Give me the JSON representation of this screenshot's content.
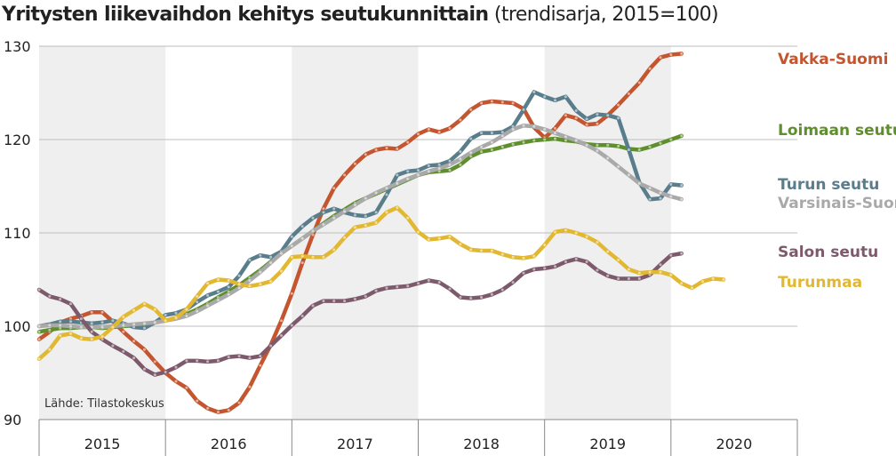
{
  "chart_data": {
    "type": "line",
    "title": "Yritysten liikevaihdon kehitys seutukunnittain",
    "subtitle": "(trendisarja, 2015=100)",
    "source": "Lähde: Tilastokeskus",
    "xlabel": "",
    "ylabel": "",
    "ylim": [
      90,
      130
    ],
    "yticks": [
      "90",
      "100",
      "110",
      "120",
      "130"
    ],
    "years": [
      "2015",
      "2016",
      "2017",
      "2018",
      "2019",
      "2020"
    ],
    "shaded_years": [
      "2015",
      "2017",
      "2019"
    ],
    "x_start": 2015.0,
    "x_end": 2021.0,
    "series": [
      {
        "name": "Vakka-Suomi",
        "color": "#c4552f",
        "start": 2015.0,
        "step": 0.0833333,
        "values": [
          98.6,
          99.4,
          100.4,
          100.8,
          101.1,
          101.5,
          101.5,
          100.5,
          99.4,
          98.4,
          97.5,
          96.2,
          95.0,
          94.1,
          93.4,
          92.0,
          91.2,
          90.8,
          91.0,
          91.8,
          93.5,
          95.8,
          98.0,
          100.6,
          103.5,
          106.8,
          109.8,
          112.6,
          114.8,
          116.2,
          117.4,
          118.4,
          118.9,
          119.1,
          119.0,
          119.7,
          120.6,
          121.1,
          120.8,
          121.2,
          122.1,
          123.2,
          123.9,
          124.1,
          124.0,
          123.9,
          123.3,
          121.3,
          120.2,
          121.2,
          122.6,
          122.3,
          121.6,
          121.7,
          122.6,
          123.7,
          124.9,
          126.1,
          127.6,
          128.8,
          129.1,
          129.2
        ]
      },
      {
        "name": "Loimaan seutu",
        "color": "#5f8f2c",
        "start": 2015.0,
        "step": 0.0833333,
        "values": [
          99.4,
          99.6,
          99.8,
          99.8,
          99.9,
          99.9,
          99.8,
          99.9,
          100.0,
          100.1,
          100.2,
          100.4,
          100.6,
          100.9,
          101.3,
          101.8,
          102.4,
          103.1,
          103.7,
          104.4,
          105.2,
          106.0,
          106.9,
          107.8,
          108.6,
          109.4,
          110.2,
          111.0,
          111.8,
          112.5,
          113.2,
          113.7,
          114.2,
          114.7,
          115.2,
          115.7,
          116.2,
          116.5,
          116.6,
          116.7,
          117.3,
          118.2,
          118.7,
          118.9,
          119.2,
          119.5,
          119.7,
          119.9,
          120.0,
          120.1,
          119.9,
          119.8,
          119.5,
          119.4,
          119.4,
          119.3,
          119.0,
          118.9,
          119.2,
          119.6,
          120.0,
          120.4
        ]
      },
      {
        "name": "Turun seutu",
        "color": "#5a7d8c",
        "start": 2015.0,
        "step": 0.0833333,
        "values": [
          100.0,
          100.2,
          100.5,
          100.5,
          100.4,
          100.3,
          100.4,
          100.6,
          100.3,
          99.9,
          99.8,
          100.4,
          101.2,
          101.4,
          101.8,
          102.6,
          103.3,
          103.7,
          104.2,
          105.4,
          107.1,
          107.6,
          107.4,
          108.0,
          109.6,
          110.7,
          111.6,
          112.2,
          112.6,
          112.2,
          111.9,
          111.8,
          112.2,
          114.1,
          116.2,
          116.6,
          116.7,
          117.2,
          117.3,
          117.7,
          118.7,
          120.1,
          120.7,
          120.7,
          120.8,
          121.4,
          123.2,
          125.1,
          124.6,
          124.2,
          124.6,
          123.1,
          122.2,
          122.7,
          122.6,
          122.3,
          118.9,
          115.4,
          113.6,
          113.7,
          115.2,
          115.1
        ]
      },
      {
        "name": "Varsinais-Suomi",
        "color": "#a9a9a9",
        "start": 2015.0,
        "step": 0.0833333,
        "values": [
          100.0,
          100.1,
          100.1,
          100.0,
          99.9,
          99.9,
          99.9,
          100.0,
          100.1,
          100.2,
          100.3,
          100.4,
          100.6,
          100.8,
          101.1,
          101.6,
          102.2,
          102.8,
          103.4,
          104.1,
          104.9,
          105.8,
          106.8,
          107.8,
          108.6,
          109.4,
          110.2,
          110.9,
          111.6,
          112.3,
          113.0,
          113.7,
          114.3,
          114.8,
          115.3,
          115.8,
          116.2,
          116.6,
          116.9,
          117.3,
          117.9,
          118.6,
          119.2,
          119.7,
          120.4,
          121.1,
          121.5,
          121.4,
          121.1,
          120.7,
          120.3,
          119.9,
          119.4,
          118.8,
          118.0,
          117.1,
          116.2,
          115.3,
          114.8,
          114.3,
          113.9,
          113.6
        ]
      },
      {
        "name": "Salon seutu",
        "color": "#7d5a6b",
        "start": 2015.0,
        "step": 0.0833333,
        "values": [
          103.9,
          103.2,
          102.9,
          102.4,
          100.8,
          99.4,
          98.6,
          97.9,
          97.3,
          96.6,
          95.4,
          94.8,
          95.1,
          95.6,
          96.3,
          96.3,
          96.2,
          96.3,
          96.7,
          96.8,
          96.6,
          96.8,
          97.9,
          99.0,
          100.1,
          101.1,
          102.2,
          102.7,
          102.7,
          102.7,
          102.9,
          103.2,
          103.8,
          104.1,
          104.2,
          104.3,
          104.6,
          104.9,
          104.7,
          104.0,
          103.1,
          103.0,
          103.1,
          103.4,
          103.9,
          104.7,
          105.7,
          106.1,
          106.2,
          106.4,
          106.9,
          107.2,
          106.9,
          106.0,
          105.4,
          105.1,
          105.1,
          105.1,
          105.5,
          106.6,
          107.6,
          107.8
        ]
      },
      {
        "name": "Turunmaa",
        "color": "#e2b830",
        "start": 2015.0,
        "step": 0.0833333,
        "values": [
          96.5,
          97.5,
          99.0,
          99.2,
          98.7,
          98.6,
          98.9,
          99.9,
          101.0,
          101.7,
          102.4,
          101.8,
          100.6,
          100.9,
          101.8,
          103.2,
          104.6,
          105.0,
          104.9,
          104.5,
          104.3,
          104.5,
          104.8,
          105.9,
          107.4,
          107.5,
          107.4,
          107.4,
          108.2,
          109.5,
          110.6,
          110.8,
          111.1,
          112.2,
          112.7,
          111.6,
          110.1,
          109.3,
          109.4,
          109.6,
          108.8,
          108.2,
          108.1,
          108.1,
          107.7,
          107.4,
          107.3,
          107.5,
          108.7,
          110.1,
          110.3,
          110.0,
          109.6,
          109.0,
          108.0,
          107.1,
          106.1,
          105.7,
          105.8,
          105.8,
          105.5,
          104.6,
          104.1,
          104.8,
          105.1,
          105.0
        ]
      }
    ]
  },
  "labels": [
    {
      "text": "Vakka-Suomi",
      "color": "#c4552f"
    },
    {
      "text": "Loimaan seutu",
      "color": "#5f8f2c"
    },
    {
      "text": "Turun seutu",
      "color": "#5a7d8c"
    },
    {
      "text": "Varsinais-Suomi",
      "color": "#a9a9a9"
    },
    {
      "text": "Salon seutu",
      "color": "#7d5a6b"
    },
    {
      "text": "Turunmaa",
      "color": "#e2b830"
    }
  ]
}
